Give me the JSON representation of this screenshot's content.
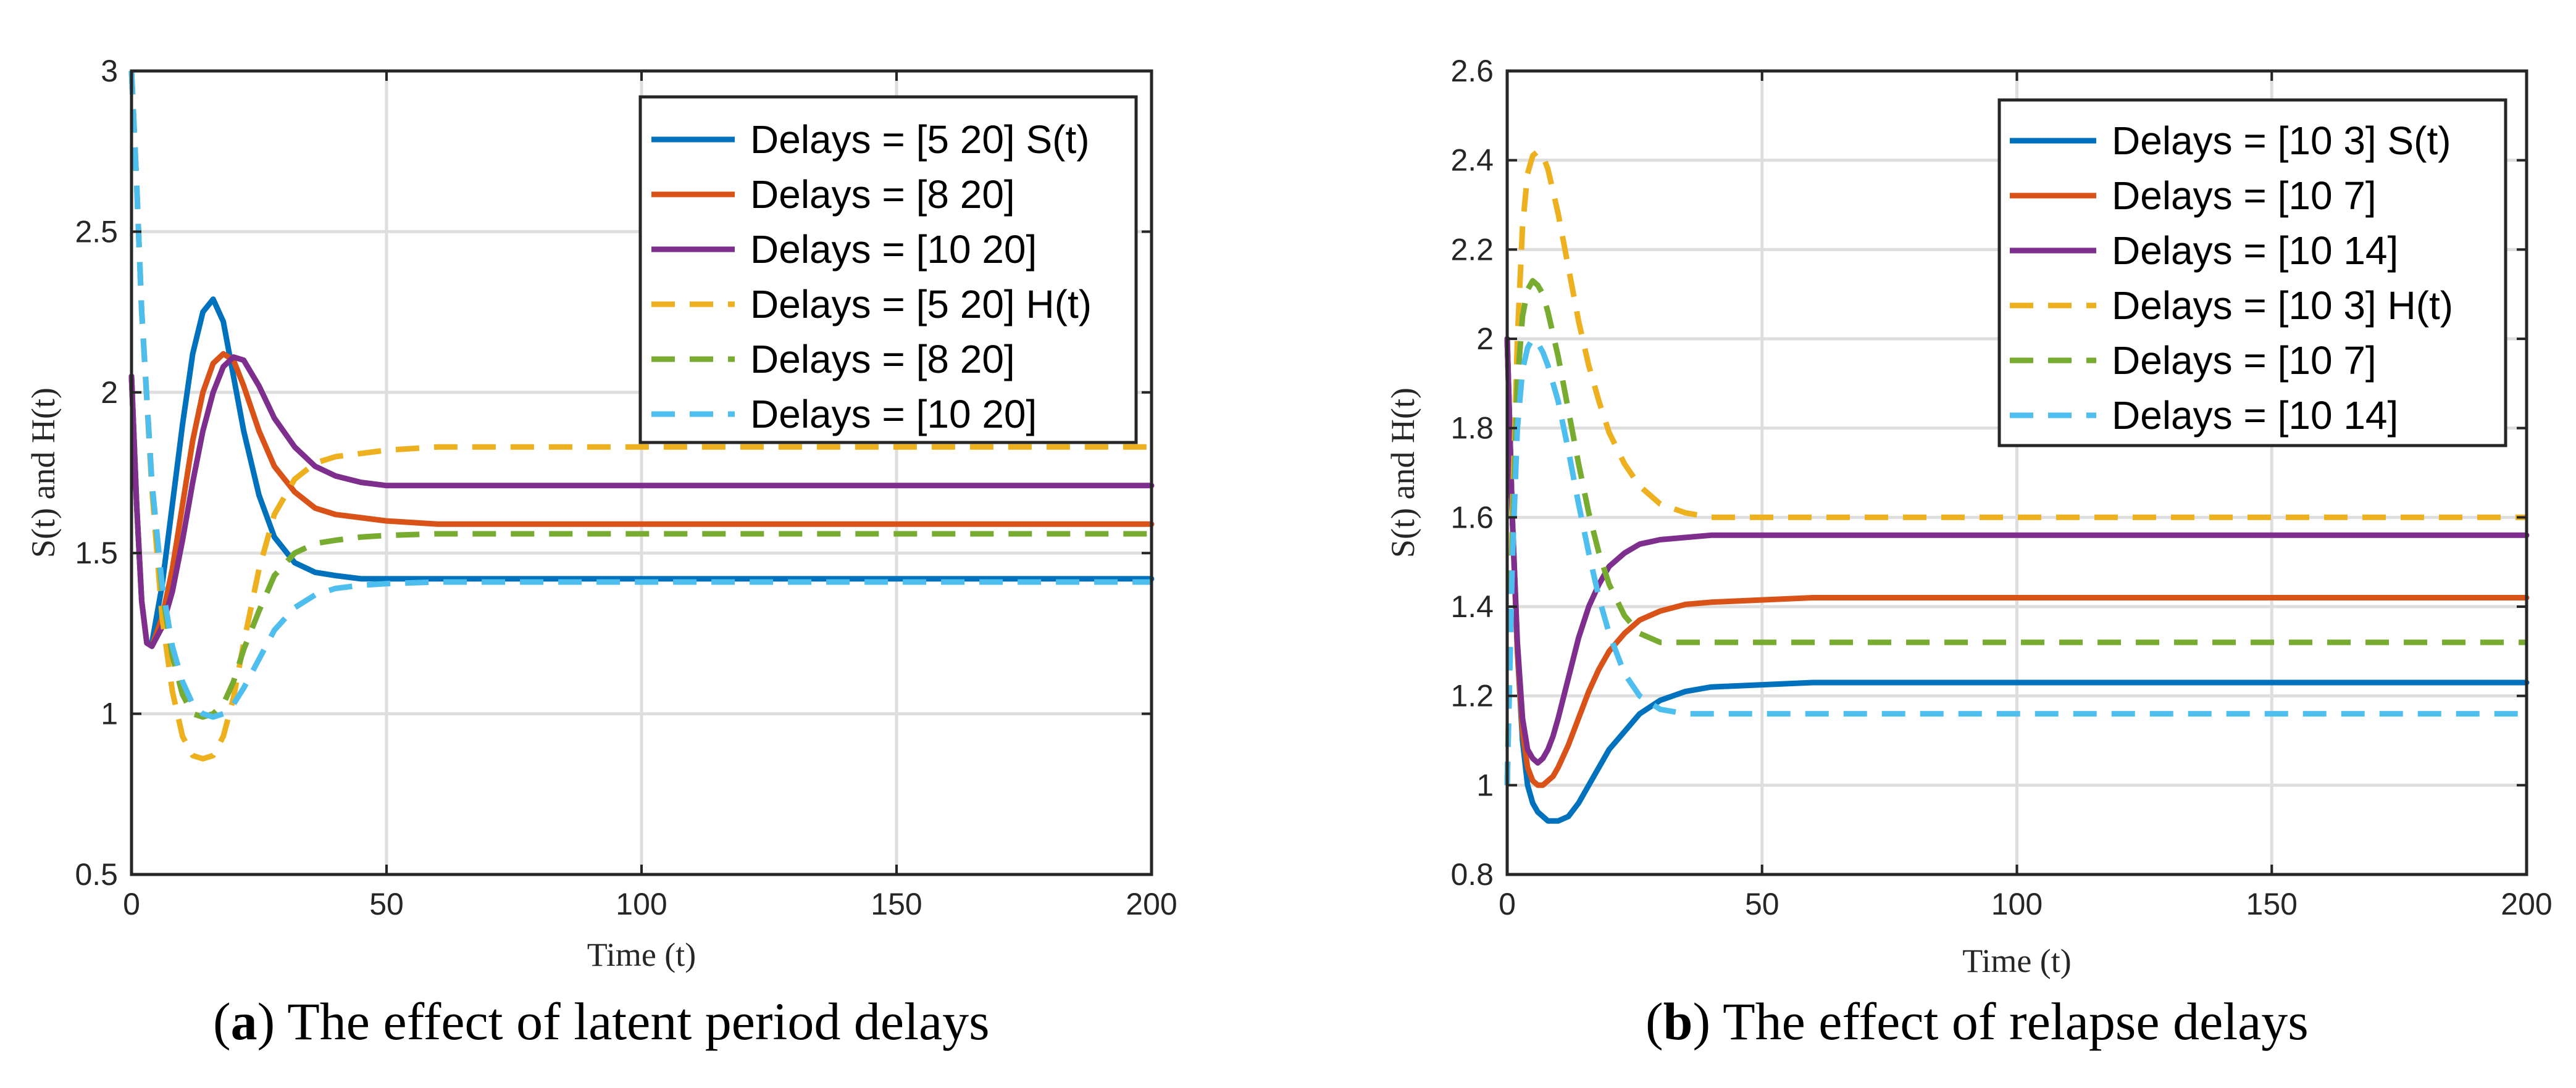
{
  "captions": [
    {
      "letter": "a",
      "text": "The effect of latent period delays"
    },
    {
      "letter": "b",
      "text": "The effect of relapse delays"
    }
  ],
  "chart_data": [
    {
      "type": "line",
      "title": "",
      "xlabel": "Time (t)",
      "ylabel": "S(t) and H(t)",
      "xlim": [
        0,
        200
      ],
      "ylim": [
        0.5,
        3
      ],
      "xticks": [
        0,
        50,
        100,
        150,
        200
      ],
      "xtick_labels": [
        "0",
        "50",
        "100",
        "150",
        "200"
      ],
      "yticks": [
        0.5,
        1,
        1.5,
        2,
        2.5,
        3
      ],
      "ytick_labels": [
        "0.5",
        "1",
        "1.5",
        "2",
        "2.5",
        "3"
      ],
      "grid": true,
      "legend_position": "top-right",
      "series": [
        {
          "name": "Delays = [5 20] S(t)",
          "color": "#0072BD",
          "style": "solid",
          "x": [
            0,
            1,
            2,
            3,
            4,
            6,
            8,
            10,
            12,
            14,
            16,
            18,
            20,
            22,
            25,
            28,
            32,
            36,
            40,
            45,
            50,
            60,
            75,
            100,
            150,
            200
          ],
          "y": [
            2.05,
            1.65,
            1.35,
            1.22,
            1.22,
            1.4,
            1.65,
            1.9,
            2.12,
            2.25,
            2.29,
            2.22,
            2.05,
            1.88,
            1.68,
            1.55,
            1.47,
            1.44,
            1.43,
            1.42,
            1.42,
            1.42,
            1.42,
            1.42,
            1.42,
            1.42
          ]
        },
        {
          "name": "Delays = [8 20]",
          "color": "#D95319",
          "style": "solid",
          "x": [
            0,
            1,
            2,
            3,
            4,
            6,
            8,
            10,
            12,
            14,
            16,
            18,
            20,
            22,
            25,
            28,
            32,
            36,
            40,
            45,
            50,
            60,
            75,
            100,
            150,
            200
          ],
          "y": [
            2.05,
            1.65,
            1.35,
            1.22,
            1.21,
            1.3,
            1.45,
            1.65,
            1.85,
            2.0,
            2.09,
            2.12,
            2.1,
            2.02,
            1.88,
            1.77,
            1.69,
            1.64,
            1.62,
            1.61,
            1.6,
            1.59,
            1.59,
            1.59,
            1.59,
            1.59
          ]
        },
        {
          "name": "Delays = [10 20]",
          "color": "#7E2F8E",
          "style": "solid",
          "x": [
            0,
            1,
            2,
            3,
            4,
            6,
            8,
            10,
            12,
            14,
            16,
            18,
            20,
            22,
            25,
            28,
            32,
            36,
            40,
            45,
            50,
            60,
            75,
            100,
            150,
            200
          ],
          "y": [
            2.05,
            1.65,
            1.35,
            1.22,
            1.21,
            1.27,
            1.38,
            1.54,
            1.72,
            1.88,
            2.0,
            2.08,
            2.11,
            2.1,
            2.02,
            1.92,
            1.83,
            1.77,
            1.74,
            1.72,
            1.71,
            1.71,
            1.71,
            1.71,
            1.71,
            1.71
          ]
        },
        {
          "name": "Delays = [5 20] H(t)",
          "color": "#EDB120",
          "style": "dashed",
          "x": [
            0,
            1,
            2,
            4,
            6,
            8,
            10,
            12,
            14,
            16,
            18,
            20,
            22,
            25,
            28,
            32,
            36,
            40,
            45,
            50,
            60,
            75,
            100,
            150,
            200
          ],
          "y": [
            3.0,
            2.65,
            2.25,
            1.7,
            1.3,
            1.07,
            0.93,
            0.87,
            0.86,
            0.87,
            0.93,
            1.05,
            1.22,
            1.45,
            1.62,
            1.73,
            1.78,
            1.8,
            1.81,
            1.82,
            1.83,
            1.83,
            1.83,
            1.83,
            1.83
          ]
        },
        {
          "name": "Delays = [8 20]",
          "color": "#77AC30",
          "style": "dashed",
          "x": [
            0,
            1,
            2,
            4,
            6,
            8,
            10,
            12,
            14,
            16,
            18,
            20,
            22,
            25,
            28,
            32,
            36,
            40,
            45,
            50,
            60,
            75,
            100,
            150,
            200
          ],
          "y": [
            3.0,
            2.65,
            2.25,
            1.72,
            1.38,
            1.18,
            1.06,
            1.0,
            0.99,
            1.0,
            1.03,
            1.1,
            1.2,
            1.32,
            1.43,
            1.5,
            1.53,
            1.54,
            1.55,
            1.555,
            1.56,
            1.56,
            1.56,
            1.56,
            1.56
          ]
        },
        {
          "name": "Delays = [10 20]",
          "color": "#4DBEEE",
          "style": "dashed",
          "x": [
            0,
            1,
            2,
            4,
            6,
            8,
            10,
            12,
            14,
            16,
            18,
            20,
            22,
            25,
            28,
            32,
            36,
            40,
            45,
            50,
            60,
            75,
            100,
            150,
            200
          ],
          "y": [
            3.0,
            2.65,
            2.25,
            1.72,
            1.4,
            1.21,
            1.1,
            1.03,
            1.0,
            0.99,
            1.0,
            1.03,
            1.08,
            1.17,
            1.26,
            1.33,
            1.37,
            1.39,
            1.4,
            1.405,
            1.41,
            1.41,
            1.41,
            1.41,
            1.41
          ]
        }
      ]
    },
    {
      "type": "line",
      "title": "",
      "xlabel": "Time (t)",
      "ylabel": "S(t) and H(t)",
      "xlim": [
        0,
        200
      ],
      "ylim": [
        0.8,
        2.6
      ],
      "xticks": [
        0,
        50,
        100,
        150,
        200
      ],
      "xtick_labels": [
        "0",
        "50",
        "100",
        "150",
        "200"
      ],
      "yticks": [
        0.8,
        1,
        1.2,
        1.4,
        1.6,
        1.8,
        2,
        2.2,
        2.4,
        2.6
      ],
      "ytick_labels": [
        "0.8",
        "1",
        "1.2",
        "1.4",
        "1.6",
        "1.8",
        "2",
        "2.2",
        "2.4",
        "2.6"
      ],
      "grid": true,
      "legend_position": "top-right",
      "series": [
        {
          "name": "Delays = [10 3] S(t)",
          "color": "#0072BD",
          "style": "solid",
          "x": [
            0,
            1,
            2,
            3,
            4,
            5,
            6,
            7,
            8,
            9,
            10,
            12,
            14,
            16,
            18,
            20,
            23,
            26,
            30,
            35,
            40,
            50,
            60,
            80,
            100,
            150,
            200
          ],
          "y": [
            2.0,
            1.6,
            1.3,
            1.1,
            1.0,
            0.96,
            0.94,
            0.93,
            0.92,
            0.92,
            0.92,
            0.93,
            0.96,
            1.0,
            1.04,
            1.08,
            1.12,
            1.16,
            1.19,
            1.21,
            1.22,
            1.225,
            1.23,
            1.23,
            1.23,
            1.23,
            1.23
          ]
        },
        {
          "name": "Delays = [10 7]",
          "color": "#D95319",
          "style": "solid",
          "x": [
            0,
            1,
            2,
            3,
            4,
            5,
            6,
            7,
            8,
            9,
            10,
            12,
            14,
            16,
            18,
            20,
            23,
            26,
            30,
            35,
            40,
            50,
            60,
            80,
            100,
            150,
            200
          ],
          "y": [
            2.0,
            1.6,
            1.3,
            1.12,
            1.04,
            1.01,
            1.0,
            1.0,
            1.01,
            1.02,
            1.04,
            1.09,
            1.15,
            1.21,
            1.26,
            1.3,
            1.34,
            1.37,
            1.39,
            1.405,
            1.41,
            1.415,
            1.42,
            1.42,
            1.42,
            1.42,
            1.42
          ]
        },
        {
          "name": "Delays = [10 14]",
          "color": "#7E2F8E",
          "style": "solid",
          "x": [
            0,
            1,
            2,
            3,
            4,
            5,
            6,
            7,
            8,
            9,
            10,
            12,
            14,
            16,
            18,
            20,
            23,
            26,
            30,
            35,
            40,
            50,
            60,
            80,
            100,
            150,
            200
          ],
          "y": [
            2.0,
            1.6,
            1.32,
            1.15,
            1.08,
            1.06,
            1.05,
            1.06,
            1.08,
            1.11,
            1.15,
            1.24,
            1.33,
            1.4,
            1.45,
            1.49,
            1.52,
            1.54,
            1.55,
            1.555,
            1.56,
            1.56,
            1.56,
            1.56,
            1.56,
            1.56,
            1.56
          ]
        },
        {
          "name": "Delays = [10 3] H(t)",
          "color": "#EDB120",
          "style": "dashed",
          "x": [
            0,
            1,
            2,
            3,
            4,
            5,
            6,
            7,
            8,
            10,
            12,
            14,
            16,
            18,
            20,
            23,
            26,
            30,
            35,
            40,
            50,
            60,
            80,
            100,
            150,
            200
          ],
          "y": [
            1.0,
            1.6,
            2.0,
            2.25,
            2.37,
            2.41,
            2.42,
            2.41,
            2.38,
            2.28,
            2.16,
            2.04,
            1.94,
            1.86,
            1.79,
            1.72,
            1.67,
            1.63,
            1.61,
            1.6,
            1.6,
            1.6,
            1.6,
            1.6,
            1.6,
            1.6
          ]
        },
        {
          "name": "Delays = [10 7]",
          "color": "#77AC30",
          "style": "dashed",
          "x": [
            0,
            1,
            2,
            3,
            4,
            5,
            6,
            7,
            8,
            10,
            12,
            14,
            16,
            18,
            20,
            23,
            26,
            30,
            35,
            40,
            50,
            60,
            80,
            100,
            150,
            200
          ],
          "y": [
            1.0,
            1.55,
            1.9,
            2.05,
            2.11,
            2.13,
            2.12,
            2.1,
            2.06,
            1.96,
            1.84,
            1.72,
            1.61,
            1.52,
            1.45,
            1.38,
            1.34,
            1.32,
            1.32,
            1.32,
            1.32,
            1.32,
            1.32,
            1.32,
            1.32,
            1.32
          ]
        },
        {
          "name": "Delays = [10 14]",
          "color": "#4DBEEE",
          "style": "dashed",
          "x": [
            0,
            1,
            2,
            3,
            4,
            5,
            6,
            7,
            8,
            10,
            12,
            14,
            16,
            18,
            20,
            23,
            26,
            30,
            35,
            40,
            50,
            60,
            80,
            100,
            150,
            200
          ],
          "y": [
            1.0,
            1.5,
            1.8,
            1.93,
            1.98,
            2.0,
            1.99,
            1.97,
            1.94,
            1.86,
            1.75,
            1.63,
            1.52,
            1.42,
            1.34,
            1.25,
            1.2,
            1.17,
            1.16,
            1.16,
            1.16,
            1.16,
            1.16,
            1.16,
            1.16,
            1.16
          ]
        }
      ]
    }
  ]
}
